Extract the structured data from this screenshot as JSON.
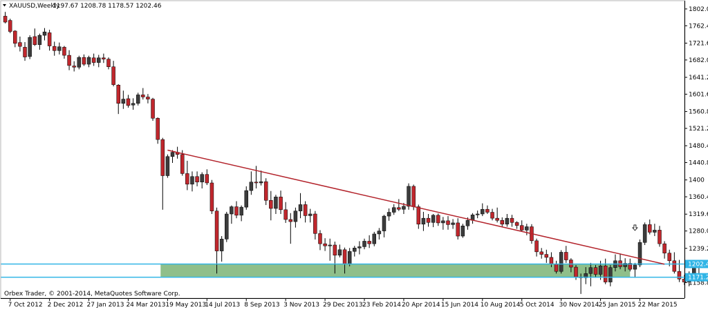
{
  "header": {
    "menu_icon": "triangle-down-icon",
    "symbol": "XAUUSD,Weekly",
    "ohlc": "1197.67 1208.78 1178.57 1202.46"
  },
  "footer": {
    "copyright": "Orbex Trader, © 2001-2014, MetaQuotes Software Corp."
  },
  "colors": {
    "bull_body": "#3c3c3c",
    "bear_body": "#c0272d",
    "wick": "#000000",
    "trendline": "#b3232b",
    "support_zone": "#8fbf8a",
    "level_line": "#31b5e6",
    "price_tag_bg": "#31b5e6",
    "price_tag_text": "#ffffff"
  },
  "chart_data": {
    "type": "candlestick",
    "symbol": "XAUUSD",
    "timeframe": "Weekly",
    "title": "XAUUSD,Weekly",
    "ylim": [
      1135,
      1810
    ],
    "y_ticks": [
      "1802.00",
      "1762.40",
      "1721.60",
      "1682.00",
      "1641.20",
      "1601.60",
      "1560.80",
      "1521.20",
      "1480.40",
      "1440.80",
      "1400",
      "1360.40",
      "1319.60",
      "1280.00",
      "1239.20",
      "1199.60",
      "1158.80"
    ],
    "x_ticks": [
      "7 Oct 2012",
      "2 Dec 2012",
      "27 Jan 2013",
      "24 Mar 2013",
      "19 May 2013",
      "14 Jul 2013",
      "8 Sep 2013",
      "3 Nov 2013",
      "29 Dec 2013",
      "23 Feb 2014",
      "20 Apr 2014",
      "15 Jun 2014",
      "10 Aug 2014",
      "5 Oct 2014",
      "30 Nov 2014",
      "25 Jan 2015",
      "22 Mar 2015"
    ],
    "price_labels": [
      {
        "value": 1202.43,
        "text": "1202.43"
      },
      {
        "value": 1171.27,
        "text": "1171.27"
      }
    ],
    "trendline": {
      "from": {
        "x": "19 May 2013",
        "y": 1470
      },
      "to": {
        "x": "26 Apr 2015",
        "y": 1202
      }
    },
    "support_zone": {
      "low": 1171.27,
      "high": 1202.43,
      "from": "12 May 2013",
      "to": "26 Apr 2015"
    },
    "arrow_marker": {
      "x": "15 Mar 2015",
      "y": 1286
    },
    "candles": [
      [
        1785,
        1795,
        1768,
        1771
      ],
      [
        1775,
        1779,
        1745,
        1749
      ],
      [
        1750,
        1752,
        1712,
        1721
      ],
      [
        1723,
        1737,
        1702,
        1714
      ],
      [
        1712,
        1724,
        1680,
        1689
      ],
      [
        1690,
        1740,
        1684,
        1735
      ],
      [
        1737,
        1756,
        1715,
        1718
      ],
      [
        1718,
        1744,
        1706,
        1740
      ],
      [
        1740,
        1757,
        1728,
        1748
      ],
      [
        1746,
        1753,
        1704,
        1715
      ],
      [
        1714,
        1725,
        1692,
        1704
      ],
      [
        1704,
        1723,
        1695,
        1713
      ],
      [
        1712,
        1715,
        1685,
        1693
      ],
      [
        1693,
        1705,
        1658,
        1669
      ],
      [
        1668,
        1679,
        1655,
        1665
      ],
      [
        1665,
        1692,
        1660,
        1688
      ],
      [
        1688,
        1695,
        1668,
        1672
      ],
      [
        1672,
        1692,
        1665,
        1688
      ],
      [
        1687,
        1697,
        1668,
        1676
      ],
      [
        1676,
        1694,
        1665,
        1687
      ],
      [
        1687,
        1697,
        1675,
        1684
      ],
      [
        1684,
        1688,
        1660,
        1666
      ],
      [
        1666,
        1680,
        1620,
        1624
      ],
      [
        1623,
        1625,
        1555,
        1580
      ],
      [
        1580,
        1610,
        1567,
        1590
      ],
      [
        1591,
        1600,
        1570,
        1575
      ],
      [
        1576,
        1592,
        1565,
        1580
      ],
      [
        1580,
        1605,
        1575,
        1600
      ],
      [
        1600,
        1616,
        1589,
        1595
      ],
      [
        1595,
        1602,
        1580,
        1590
      ],
      [
        1590,
        1593,
        1539,
        1545
      ],
      [
        1545,
        1547,
        1485,
        1495
      ],
      [
        1495,
        1499,
        1330,
        1410
      ],
      [
        1410,
        1460,
        1405,
        1455
      ],
      [
        1455,
        1470,
        1440,
        1465
      ],
      [
        1465,
        1478,
        1450,
        1460
      ],
      [
        1460,
        1470,
        1410,
        1415
      ],
      [
        1415,
        1445,
        1376,
        1390
      ],
      [
        1390,
        1420,
        1373,
        1408
      ],
      [
        1408,
        1420,
        1385,
        1395
      ],
      [
        1395,
        1418,
        1380,
        1413
      ],
      [
        1413,
        1425,
        1388,
        1393
      ],
      [
        1393,
        1400,
        1320,
        1327
      ],
      [
        1327,
        1335,
        1180,
        1233
      ],
      [
        1233,
        1268,
        1208,
        1261
      ],
      [
        1261,
        1325,
        1254,
        1320
      ],
      [
        1320,
        1340,
        1297,
        1337
      ],
      [
        1337,
        1350,
        1310,
        1317
      ],
      [
        1317,
        1340,
        1303,
        1336
      ],
      [
        1336,
        1385,
        1330,
        1375
      ],
      [
        1375,
        1420,
        1365,
        1395
      ],
      [
        1395,
        1433,
        1380,
        1393
      ],
      [
        1393,
        1422,
        1387,
        1396
      ],
      [
        1396,
        1404,
        1341,
        1352
      ],
      [
        1352,
        1374,
        1305,
        1333
      ],
      [
        1333,
        1365,
        1320,
        1360
      ],
      [
        1360,
        1375,
        1320,
        1330
      ],
      [
        1330,
        1348,
        1299,
        1307
      ],
      [
        1307,
        1322,
        1250,
        1302
      ],
      [
        1302,
        1335,
        1288,
        1327
      ],
      [
        1327,
        1369,
        1310,
        1342
      ],
      [
        1342,
        1350,
        1300,
        1316
      ],
      [
        1316,
        1332,
        1300,
        1320
      ],
      [
        1320,
        1327,
        1260,
        1274
      ],
      [
        1274,
        1282,
        1235,
        1250
      ],
      [
        1250,
        1263,
        1233,
        1245
      ],
      [
        1245,
        1262,
        1210,
        1247
      ],
      [
        1247,
        1255,
        1180,
        1223
      ],
      [
        1223,
        1248,
        1218,
        1236
      ],
      [
        1236,
        1241,
        1180,
        1202
      ],
      [
        1202,
        1240,
        1197,
        1232
      ],
      [
        1232,
        1245,
        1220,
        1240
      ],
      [
        1240,
        1256,
        1225,
        1243
      ],
      [
        1243,
        1262,
        1237,
        1256
      ],
      [
        1256,
        1270,
        1240,
        1250
      ],
      [
        1250,
        1278,
        1244,
        1273
      ],
      [
        1273,
        1287,
        1260,
        1280
      ],
      [
        1280,
        1318,
        1265,
        1315
      ],
      [
        1315,
        1333,
        1304,
        1324
      ],
      [
        1324,
        1343,
        1318,
        1335
      ],
      [
        1335,
        1355,
        1327,
        1331
      ],
      [
        1331,
        1346,
        1320,
        1338
      ],
      [
        1338,
        1392,
        1330,
        1385
      ],
      [
        1385,
        1389,
        1329,
        1337
      ],
      [
        1337,
        1342,
        1285,
        1296
      ],
      [
        1296,
        1325,
        1280,
        1310
      ],
      [
        1310,
        1320,
        1290,
        1300
      ],
      [
        1300,
        1320,
        1289,
        1317
      ],
      [
        1317,
        1321,
        1292,
        1299
      ],
      [
        1299,
        1313,
        1283,
        1304
      ],
      [
        1304,
        1315,
        1283,
        1295
      ],
      [
        1295,
        1308,
        1285,
        1299
      ],
      [
        1299,
        1310,
        1260,
        1268
      ],
      [
        1268,
        1297,
        1264,
        1292
      ],
      [
        1292,
        1312,
        1283,
        1305
      ],
      [
        1305,
        1322,
        1297,
        1318
      ],
      [
        1318,
        1328,
        1310,
        1320
      ],
      [
        1320,
        1345,
        1315,
        1331
      ],
      [
        1331,
        1340,
        1320,
        1324
      ],
      [
        1324,
        1332,
        1305,
        1310
      ],
      [
        1310,
        1335,
        1300,
        1305
      ],
      [
        1305,
        1312,
        1290,
        1296
      ],
      [
        1296,
        1320,
        1290,
        1310
      ],
      [
        1310,
        1318,
        1290,
        1300
      ],
      [
        1300,
        1303,
        1285,
        1293
      ],
      [
        1293,
        1305,
        1278,
        1282
      ],
      [
        1282,
        1297,
        1270,
        1290
      ],
      [
        1290,
        1296,
        1250,
        1257
      ],
      [
        1257,
        1262,
        1220,
        1231
      ],
      [
        1231,
        1240,
        1215,
        1225
      ],
      [
        1225,
        1236,
        1205,
        1218
      ],
      [
        1218,
        1230,
        1195,
        1202
      ],
      [
        1202,
        1210,
        1180,
        1185
      ],
      [
        1185,
        1235,
        1180,
        1230
      ],
      [
        1230,
        1245,
        1205,
        1212
      ],
      [
        1212,
        1216,
        1183,
        1195
      ],
      [
        1195,
        1200,
        1165,
        1172
      ],
      [
        1172,
        1180,
        1132,
        1170
      ],
      [
        1170,
        1195,
        1155,
        1180
      ],
      [
        1180,
        1205,
        1150,
        1194
      ],
      [
        1194,
        1200,
        1170,
        1178
      ],
      [
        1178,
        1210,
        1165,
        1198
      ],
      [
        1198,
        1215,
        1155,
        1160
      ],
      [
        1160,
        1200,
        1150,
        1194
      ],
      [
        1194,
        1225,
        1185,
        1210
      ],
      [
        1210,
        1227,
        1190,
        1196
      ],
      [
        1196,
        1216,
        1185,
        1204
      ],
      [
        1204,
        1215,
        1185,
        1190
      ],
      [
        1190,
        1205,
        1170,
        1200
      ],
      [
        1200,
        1260,
        1195,
        1253
      ],
      [
        1253,
        1300,
        1247,
        1295
      ],
      [
        1295,
        1307,
        1272,
        1277
      ],
      [
        1277,
        1297,
        1268,
        1282
      ],
      [
        1282,
        1292,
        1243,
        1250
      ],
      [
        1250,
        1256,
        1215,
        1228
      ],
      [
        1228,
        1236,
        1197,
        1210
      ],
      [
        1210,
        1230,
        1180,
        1185
      ],
      [
        1185,
        1212,
        1160,
        1167
      ],
      [
        1167,
        1177,
        1153,
        1160
      ],
      [
        1160,
        1185,
        1150,
        1180
      ],
      [
        1180,
        1210,
        1170,
        1198
      ],
      [
        1198,
        1209,
        1179,
        1202
      ]
    ]
  }
}
